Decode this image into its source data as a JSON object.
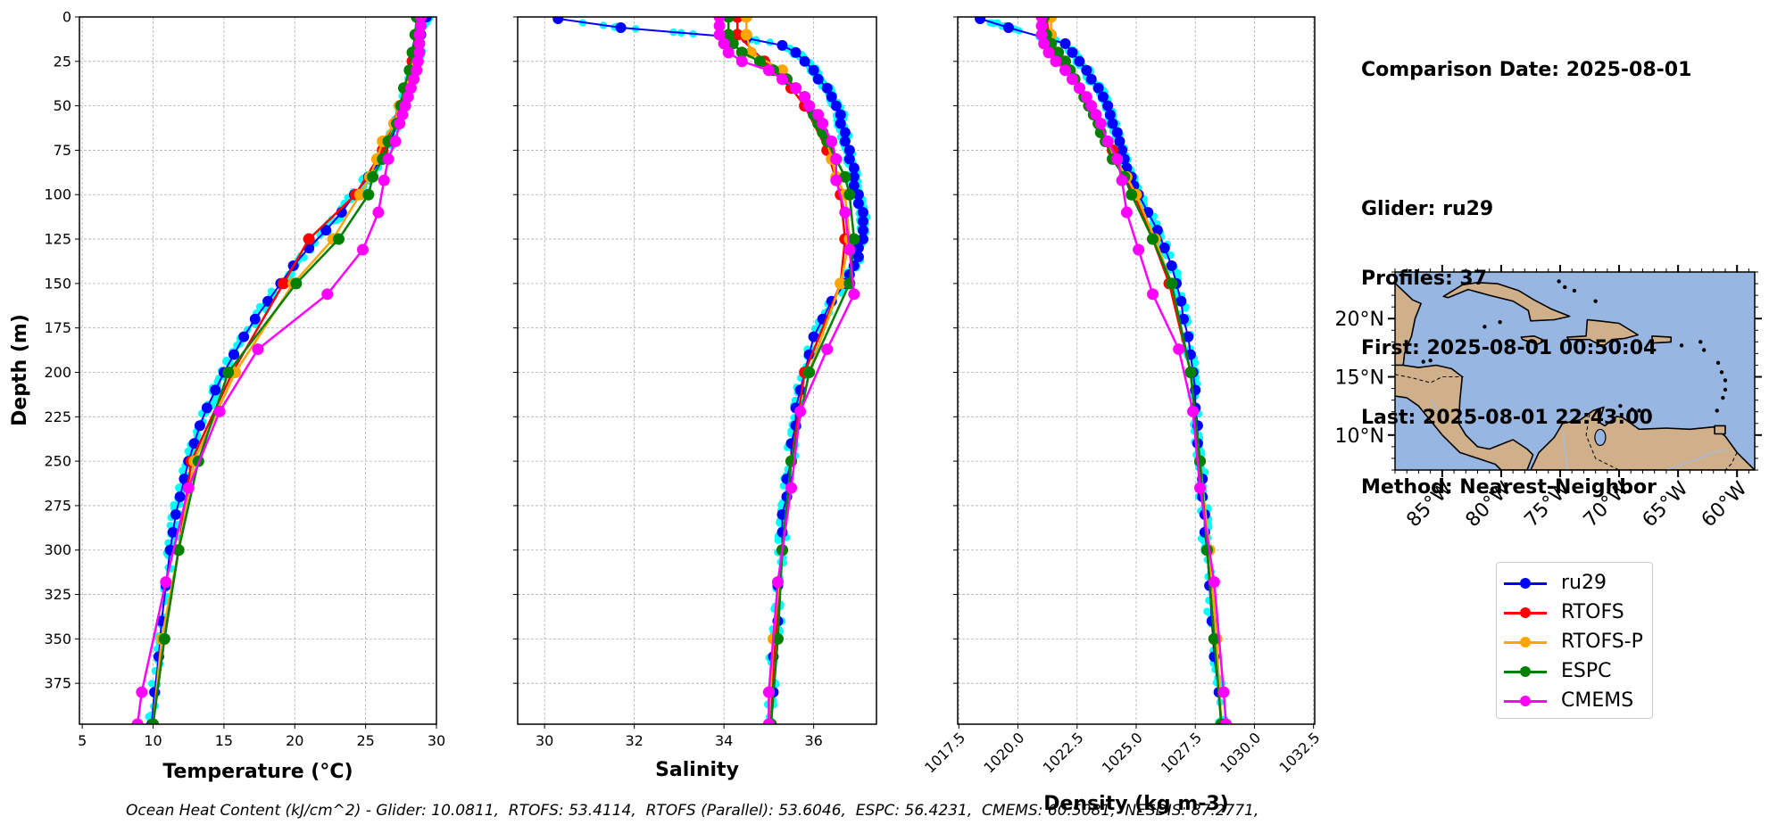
{
  "info": {
    "comparison_date": "Comparison Date: 2025-08-01",
    "glider": "Glider: ru29",
    "profiles": "Profiles: 37",
    "first": "First: 2025-08-01 00:50:04",
    "last": "Last: 2025-08-01 22:43:00",
    "method": "Method: Nearest-Neighbor"
  },
  "footer": "Ocean Heat Content (kJ/cm^2) - Glider: 10.0811,  RTOFS: 53.4114,  RTOFS (Parallel): 53.6046,  ESPC: 56.4231,  CMEMS: 60.5081,  NESDIS: 87.2771,",
  "legend": [
    {
      "label": "ru29",
      "color": "#0000ff"
    },
    {
      "label": "RTOFS",
      "color": "#ff0000"
    },
    {
      "label": "RTOFS-P",
      "color": "#ffa500"
    },
    {
      "label": "ESPC",
      "color": "#008000"
    },
    {
      "label": "CMEMS",
      "color": "#ff00ff"
    }
  ],
  "map": {
    "lat_labels": [
      "20°N",
      "15°N",
      "10°N"
    ],
    "lat_values": [
      20,
      15,
      10
    ],
    "lon_labels": [
      "85°W",
      "80°W",
      "75°W",
      "70°W",
      "65°W",
      "60°W"
    ],
    "lon_values": [
      -85,
      -80,
      -75,
      -70,
      -65,
      -60
    ],
    "extent": {
      "lon_min": -89,
      "lon_max": -58.5,
      "lat_min": 7,
      "lat_max": 24
    },
    "ocean_color": "#97b6e1",
    "land_color": "#cfb08a"
  },
  "chart_data": [
    {
      "type": "line",
      "id": "temperature",
      "title": "",
      "xlabel": "Temperature (°C)",
      "ylabel": "Depth (m)",
      "xlim": [
        4.8,
        30.0
      ],
      "ylim": [
        398,
        0
      ],
      "xticks": [
        5,
        10,
        15,
        20,
        25,
        30
      ],
      "xtick_labels": [
        "5",
        "10",
        "15",
        "20",
        "25",
        "30"
      ],
      "yticks": [
        0,
        25,
        50,
        75,
        100,
        125,
        150,
        175,
        200,
        225,
        250,
        275,
        300,
        325,
        350,
        375
      ],
      "ytick_labels": [
        "0",
        "25",
        "50",
        "75",
        "100",
        "125",
        "150",
        "175",
        "200",
        "225",
        "250",
        "275",
        "300",
        "325",
        "350",
        "375"
      ],
      "grid": true,
      "glider_scatter_color": "#00ffff",
      "series": [
        {
          "name": "ru29",
          "color": "#0000ff",
          "depth": [
            0,
            10,
            20,
            30,
            40,
            50,
            60,
            70,
            80,
            90,
            100,
            110,
            120,
            130,
            140,
            150,
            160,
            170,
            180,
            190,
            200,
            210,
            220,
            230,
            240,
            250,
            260,
            270,
            280,
            290,
            300,
            320,
            340,
            360,
            380,
            398
          ],
          "values": [
            29.3,
            28.9,
            28.7,
            28.3,
            28.0,
            27.6,
            27.2,
            26.8,
            26.1,
            25.2,
            24.2,
            23.3,
            22.2,
            21.0,
            19.9,
            19.0,
            18.1,
            17.2,
            16.4,
            15.7,
            15.0,
            14.4,
            13.8,
            13.3,
            12.9,
            12.5,
            12.2,
            11.9,
            11.6,
            11.4,
            11.2,
            10.9,
            10.6,
            10.4,
            10.1,
            9.9
          ]
        },
        {
          "name": "RTOFS",
          "color": "#ff0000",
          "depth": [
            0,
            25,
            50,
            75,
            100,
            125,
            150,
            200,
            250,
            300,
            350,
            398
          ],
          "values": [
            28.9,
            28.3,
            27.4,
            26.2,
            24.3,
            21.0,
            19.2,
            15.6,
            12.7,
            11.8,
            10.8,
            10.0
          ]
        },
        {
          "name": "RTOFS-P",
          "color": "#ffa500",
          "depth": [
            0,
            10,
            20,
            30,
            40,
            50,
            60,
            70,
            80,
            90,
            100,
            125,
            150,
            200,
            250,
            300,
            350,
            398
          ],
          "values": [
            28.9,
            28.8,
            28.5,
            28.2,
            27.9,
            27.4,
            27.0,
            26.2,
            25.8,
            25.3,
            24.6,
            22.7,
            19.9,
            15.8,
            12.9,
            11.8,
            10.6,
            10.0
          ]
        },
        {
          "name": "ESPC",
          "color": "#008000",
          "depth": [
            0,
            10,
            20,
            30,
            40,
            50,
            60,
            70,
            80,
            90,
            100,
            125,
            150,
            200,
            250,
            300,
            350,
            398
          ],
          "values": [
            28.6,
            28.5,
            28.3,
            28.1,
            27.7,
            27.5,
            27.2,
            26.6,
            26.2,
            25.5,
            25.2,
            23.1,
            20.1,
            15.3,
            13.2,
            11.8,
            10.8,
            10.0
          ]
        },
        {
          "name": "CMEMS",
          "color": "#ff00ff",
          "depth": [
            0,
            5,
            10,
            15,
            20,
            25,
            30,
            35,
            40,
            45,
            50,
            55,
            60,
            70,
            80,
            92,
            110,
            131,
            156,
            187,
            222,
            265,
            318,
            380,
            398
          ],
          "values": [
            28.9,
            28.9,
            28.8,
            28.8,
            28.8,
            28.7,
            28.6,
            28.4,
            28.2,
            28.0,
            27.8,
            27.6,
            27.4,
            27.1,
            26.6,
            26.3,
            25.9,
            24.8,
            22.3,
            17.4,
            14.7,
            12.5,
            10.9,
            9.2,
            8.9
          ]
        }
      ]
    },
    {
      "type": "line",
      "id": "salinity",
      "title": "",
      "xlabel": "Salinity",
      "ylabel": "",
      "xlim": [
        29.4,
        37.4
      ],
      "ylim": [
        398,
        0
      ],
      "xticks": [
        30,
        32,
        34,
        36
      ],
      "xtick_labels": [
        "30",
        "32",
        "34",
        "36"
      ],
      "yticks": [
        0,
        25,
        50,
        75,
        100,
        125,
        150,
        175,
        200,
        225,
        250,
        275,
        300,
        325,
        350,
        375
      ],
      "grid": true,
      "glider_scatter_color": "#00ffff",
      "series": [
        {
          "name": "ru29",
          "color": "#0000ff",
          "depth": [
            1,
            6,
            12,
            16,
            20,
            25,
            30,
            35,
            40,
            45,
            50,
            55,
            60,
            65,
            70,
            75,
            80,
            85,
            90,
            95,
            100,
            105,
            110,
            115,
            120,
            125,
            130,
            135,
            140,
            145,
            150,
            160,
            170,
            180,
            190,
            200,
            210,
            220,
            230,
            240,
            250,
            260,
            270,
            280,
            290,
            300,
            320,
            340,
            360,
            380,
            398
          ],
          "values": [
            30.3,
            31.7,
            34.5,
            35.3,
            35.6,
            35.8,
            36.0,
            36.1,
            36.3,
            36.4,
            36.5,
            36.6,
            36.6,
            36.7,
            36.7,
            36.8,
            36.8,
            36.9,
            36.9,
            36.9,
            37.0,
            37.0,
            37.1,
            37.1,
            37.1,
            37.1,
            37.0,
            37.0,
            36.9,
            36.8,
            36.7,
            36.4,
            36.2,
            36.0,
            35.9,
            35.8,
            35.7,
            35.6,
            35.6,
            35.5,
            35.5,
            35.4,
            35.4,
            35.3,
            35.3,
            35.3,
            35.2,
            35.2,
            35.1,
            35.1,
            35.0
          ]
        },
        {
          "name": "RTOFS",
          "color": "#ff0000",
          "depth": [
            0,
            10,
            25,
            40,
            50,
            75,
            100,
            125,
            150,
            200,
            250,
            300,
            350,
            398
          ],
          "values": [
            34.3,
            34.3,
            34.9,
            35.5,
            35.8,
            36.3,
            36.6,
            36.7,
            36.6,
            35.8,
            35.5,
            35.3,
            35.15,
            35.0
          ]
        },
        {
          "name": "RTOFS-P",
          "color": "#ffa500",
          "depth": [
            0,
            10,
            20,
            30,
            40,
            50,
            60,
            70,
            80,
            90,
            100,
            125,
            150,
            200,
            250,
            300,
            350,
            398
          ],
          "values": [
            34.5,
            34.5,
            34.6,
            35.3,
            35.6,
            35.9,
            36.1,
            36.3,
            36.4,
            36.5,
            36.7,
            36.8,
            36.6,
            35.9,
            35.5,
            35.3,
            35.1,
            35.0
          ]
        },
        {
          "name": "ESPC",
          "color": "#008000",
          "depth": [
            0,
            10,
            15,
            20,
            25,
            30,
            35,
            40,
            45,
            50,
            55,
            60,
            65,
            70,
            80,
            90,
            100,
            125,
            150,
            200,
            250,
            300,
            350,
            398
          ],
          "values": [
            34.1,
            34.1,
            34.2,
            34.4,
            34.8,
            35.1,
            35.4,
            35.6,
            35.8,
            35.9,
            36.0,
            36.1,
            36.2,
            36.3,
            36.5,
            36.7,
            36.8,
            36.9,
            36.8,
            35.9,
            35.5,
            35.3,
            35.2,
            35.05
          ]
        },
        {
          "name": "CMEMS",
          "color": "#ff00ff",
          "depth": [
            0,
            5,
            10,
            15,
            20,
            25,
            30,
            35,
            40,
            45,
            50,
            55,
            60,
            70,
            80,
            92,
            110,
            131,
            156,
            187,
            222,
            265,
            318,
            380,
            398
          ],
          "values": [
            33.9,
            33.9,
            33.9,
            34.0,
            34.1,
            34.4,
            35.0,
            35.3,
            35.6,
            35.8,
            35.9,
            36.1,
            36.2,
            36.4,
            36.5,
            36.5,
            36.7,
            36.8,
            36.9,
            36.3,
            35.7,
            35.5,
            35.2,
            35.0,
            35.0
          ]
        }
      ]
    },
    {
      "type": "line",
      "id": "density",
      "title": "",
      "xlabel": "Density (kg m-3)",
      "ylabel": "",
      "xlim": [
        1017.45,
        1032.55
      ],
      "ylim": [
        398,
        0
      ],
      "xticks": [
        1017.5,
        1020.0,
        1022.5,
        1025.0,
        1027.5,
        1030.0,
        1032.5
      ],
      "xtick_labels": [
        "1017.5",
        "1020.0",
        "1022.5",
        "1025.0",
        "1027.5",
        "1030.0",
        "1032.5"
      ],
      "yticks": [
        0,
        25,
        50,
        75,
        100,
        125,
        150,
        175,
        200,
        225,
        250,
        275,
        300,
        325,
        350,
        375
      ],
      "grid": true,
      "glider_scatter_color": "#00ffff",
      "series": [
        {
          "name": "ru29",
          "color": "#0000ff",
          "depth": [
            1,
            6,
            15,
            20,
            25,
            30,
            35,
            40,
            45,
            50,
            55,
            60,
            65,
            70,
            75,
            80,
            85,
            90,
            95,
            100,
            110,
            120,
            130,
            140,
            150,
            160,
            170,
            180,
            190,
            200,
            210,
            220,
            230,
            240,
            250,
            260,
            270,
            280,
            290,
            300,
            320,
            340,
            360,
            380,
            398
          ],
          "values": [
            1018.4,
            1019.6,
            1022.0,
            1022.3,
            1022.6,
            1022.9,
            1023.1,
            1023.4,
            1023.6,
            1023.8,
            1023.9,
            1024.0,
            1024.2,
            1024.3,
            1024.4,
            1024.5,
            1024.6,
            1024.8,
            1024.9,
            1025.1,
            1025.5,
            1025.9,
            1026.2,
            1026.5,
            1026.7,
            1026.9,
            1027.0,
            1027.2,
            1027.3,
            1027.4,
            1027.5,
            1027.5,
            1027.6,
            1027.6,
            1027.7,
            1027.8,
            1027.8,
            1027.9,
            1027.9,
            1028.0,
            1028.1,
            1028.2,
            1028.3,
            1028.5,
            1028.6
          ]
        },
        {
          "name": "RTOFS",
          "color": "#ff0000",
          "depth": [
            0,
            10,
            25,
            50,
            75,
            100,
            125,
            150,
            200,
            250,
            300,
            350,
            398
          ],
          "values": [
            1021.2,
            1021.3,
            1021.9,
            1023.0,
            1024.0,
            1024.9,
            1025.7,
            1026.4,
            1027.3,
            1027.7,
            1028.0,
            1028.3,
            1028.6
          ]
        },
        {
          "name": "RTOFS-P",
          "color": "#ffa500",
          "depth": [
            0,
            10,
            20,
            30,
            40,
            50,
            60,
            70,
            80,
            90,
            100,
            125,
            150,
            200,
            250,
            300,
            350,
            398
          ],
          "values": [
            1021.4,
            1021.4,
            1021.7,
            1022.2,
            1022.6,
            1023.0,
            1023.4,
            1023.8,
            1024.1,
            1024.6,
            1025.0,
            1025.8,
            1026.5,
            1027.3,
            1027.7,
            1028.1,
            1028.4,
            1028.6
          ]
        },
        {
          "name": "ESPC",
          "color": "#008000",
          "depth": [
            0,
            10,
            15,
            20,
            25,
            30,
            35,
            40,
            45,
            50,
            55,
            60,
            65,
            70,
            80,
            90,
            100,
            125,
            150,
            200,
            250,
            300,
            350,
            398
          ],
          "values": [
            1021.1,
            1021.2,
            1021.4,
            1021.7,
            1022.0,
            1022.2,
            1022.4,
            1022.6,
            1022.8,
            1023.0,
            1023.2,
            1023.4,
            1023.5,
            1023.7,
            1024.0,
            1024.5,
            1024.8,
            1025.7,
            1026.5,
            1027.3,
            1027.7,
            1028.0,
            1028.3,
            1028.6
          ]
        },
        {
          "name": "CMEMS",
          "color": "#ff00ff",
          "depth": [
            0,
            5,
            10,
            15,
            20,
            25,
            30,
            35,
            40,
            45,
            50,
            55,
            60,
            70,
            80,
            92,
            110,
            131,
            156,
            187,
            222,
            265,
            318,
            380,
            398
          ],
          "values": [
            1021.0,
            1021.0,
            1021.0,
            1021.1,
            1021.3,
            1021.6,
            1022.0,
            1022.3,
            1022.6,
            1022.9,
            1023.1,
            1023.3,
            1023.5,
            1023.8,
            1024.2,
            1024.4,
            1024.6,
            1025.1,
            1025.7,
            1026.8,
            1027.4,
            1027.7,
            1028.3,
            1028.7,
            1028.8
          ]
        }
      ]
    }
  ]
}
